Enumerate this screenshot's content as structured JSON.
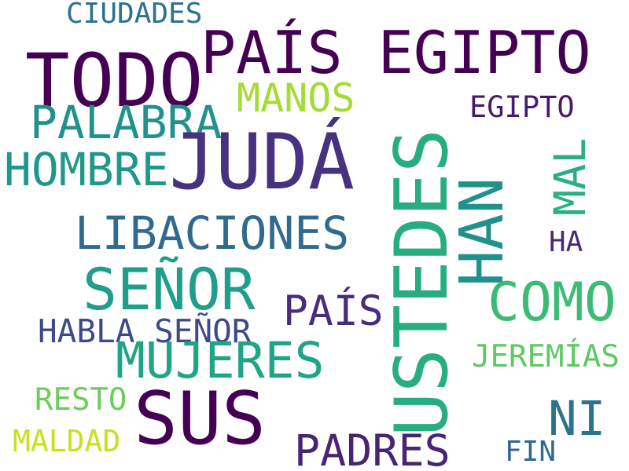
{
  "words": [
    {
      "key": "juda",
      "text": "JUDÁ",
      "color": "#46327e"
    },
    {
      "key": "ustedes",
      "text": "USTEDES",
      "color": "#27ad81"
    },
    {
      "key": "todo",
      "text": "TODO",
      "color": "#440154"
    },
    {
      "key": "pais_egipto",
      "text": "PAÍS EGIPTO",
      "color": "#440154"
    },
    {
      "key": "sus",
      "text": "SUS",
      "color": "#440154"
    },
    {
      "key": "senor",
      "text": "SEÑOR",
      "color": "#1f9e89"
    },
    {
      "key": "mujeres",
      "text": "MUJERES",
      "color": "#20a486"
    },
    {
      "key": "han",
      "text": "HAN",
      "color": "#21918c"
    },
    {
      "key": "como",
      "text": "COMO",
      "color": "#3cbb75"
    },
    {
      "key": "libaciones",
      "text": "LIBACIONES",
      "color": "#306a8e"
    },
    {
      "key": "palabra",
      "text": "PALABRA",
      "color": "#21918c"
    },
    {
      "key": "hombre",
      "text": "HOMBRE",
      "color": "#1f988b"
    },
    {
      "key": "manos",
      "text": "MANOS",
      "color": "#a5db36"
    },
    {
      "key": "mal",
      "text": "MAL",
      "color": "#2ab07f"
    },
    {
      "key": "ni",
      "text": "NI",
      "color": "#2c728e"
    },
    {
      "key": "padres",
      "text": "PADRES",
      "color": "#482475"
    },
    {
      "key": "pais",
      "text": "PAÍS",
      "color": "#472d7b"
    },
    {
      "key": "habla_senor",
      "text": "HABLA SEÑOR",
      "color": "#3e4989"
    },
    {
      "key": "ciudades",
      "text": "CIUDADES",
      "color": "#2c728e"
    },
    {
      "key": "egipto",
      "text": "EGIPTO",
      "color": "#481a6c"
    },
    {
      "key": "jeremias",
      "text": "JEREMÍAS",
      "color": "#5ec962"
    },
    {
      "key": "resto",
      "text": "RESTO",
      "color": "#6ccd5a"
    },
    {
      "key": "maldad",
      "text": "MALDAD",
      "color": "#c8e020"
    },
    {
      "key": "ha",
      "text": "HA",
      "color": "#482878"
    },
    {
      "key": "fin",
      "text": "FIN",
      "color": "#31688e"
    }
  ]
}
